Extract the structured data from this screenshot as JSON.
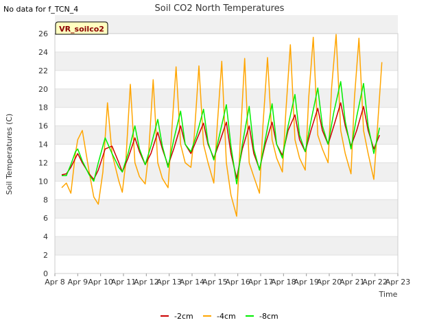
{
  "no_data_note": "No data for f_TCN_4",
  "chart_data": {
    "type": "line",
    "title": "Soil CO2 North Temperatures",
    "xlabel": "Time",
    "ylabel": "Soil Temperatures (C)",
    "badge": "VR_soilco2",
    "ylim": [
      0,
      26
    ],
    "yticks": [
      0,
      2,
      4,
      6,
      8,
      10,
      12,
      14,
      16,
      18,
      20,
      22,
      24,
      26
    ],
    "xlim": [
      8,
      23
    ],
    "xticks": [
      {
        "x": 8,
        "label": "Apr 8"
      },
      {
        "x": 9,
        "label": "Apr 9"
      },
      {
        "x": 10,
        "label": "Apr 10"
      },
      {
        "x": 11,
        "label": "Apr 11"
      },
      {
        "x": 12,
        "label": "Apr 12"
      },
      {
        "x": 13,
        "label": "Apr 13"
      },
      {
        "x": 14,
        "label": "Apr 14"
      },
      {
        "x": 15,
        "label": "Apr 15"
      },
      {
        "x": 16,
        "label": "Apr 16"
      },
      {
        "x": 17,
        "label": "Apr 17"
      },
      {
        "x": 18,
        "label": "Apr 18"
      },
      {
        "x": 19,
        "label": "Apr 19"
      },
      {
        "x": 20,
        "label": "Apr 20"
      },
      {
        "x": 21,
        "label": "Apr 21"
      },
      {
        "x": 22,
        "label": "Apr 22"
      },
      {
        "x": 23,
        "label": "Apr 23"
      }
    ],
    "grid": "horizontal bands",
    "legend_position": "bottom-center",
    "series": [
      {
        "name": "-2cm",
        "color": "#cc0000",
        "x": [
          8.3,
          8.5,
          8.7,
          8.9,
          9.0,
          9.2,
          9.5,
          9.7,
          9.9,
          10.2,
          10.5,
          10.8,
          10.95,
          11.2,
          11.5,
          11.7,
          11.95,
          12.2,
          12.5,
          12.7,
          12.95,
          13.2,
          13.5,
          13.7,
          13.95,
          14.2,
          14.5,
          14.7,
          14.95,
          15.2,
          15.5,
          15.7,
          15.95,
          16.2,
          16.5,
          16.7,
          16.95,
          17.2,
          17.5,
          17.7,
          17.95,
          18.2,
          18.5,
          18.7,
          18.95,
          19.2,
          19.5,
          19.7,
          19.95,
          20.2,
          20.5,
          20.7,
          20.95,
          21.2,
          21.5,
          21.7,
          21.95,
          22.2
        ],
        "y": [
          10.7,
          10.8,
          11.5,
          12.5,
          13.0,
          12.0,
          10.8,
          10.2,
          11.2,
          13.5,
          13.8,
          12.0,
          11.0,
          12.5,
          14.7,
          13.2,
          11.8,
          13.0,
          15.3,
          13.5,
          11.7,
          13.5,
          16.0,
          14.0,
          13.0,
          14.5,
          16.3,
          14.0,
          12.5,
          14.2,
          16.4,
          13.0,
          10.3,
          13.5,
          16.0,
          13.0,
          11.3,
          14.0,
          16.4,
          14.0,
          12.8,
          15.5,
          17.2,
          14.5,
          13.2,
          15.5,
          17.9,
          15.5,
          14.0,
          16.0,
          18.5,
          16.0,
          13.8,
          15.5,
          18.1,
          15.5,
          13.5,
          15.0
        ]
      },
      {
        "name": "-4cm",
        "color": "#ffa500",
        "x": [
          8.3,
          8.5,
          8.7,
          8.9,
          9.0,
          9.2,
          9.5,
          9.7,
          9.9,
          10.1,
          10.3,
          10.5,
          10.8,
          10.95,
          11.1,
          11.3,
          11.5,
          11.7,
          11.95,
          12.1,
          12.3,
          12.5,
          12.7,
          12.95,
          13.1,
          13.3,
          13.5,
          13.7,
          13.95,
          14.1,
          14.3,
          14.5,
          14.7,
          14.95,
          15.1,
          15.3,
          15.5,
          15.7,
          15.95,
          16.1,
          16.3,
          16.5,
          16.7,
          16.95,
          17.1,
          17.3,
          17.5,
          17.7,
          17.95,
          18.1,
          18.3,
          18.5,
          18.7,
          18.95,
          19.1,
          19.3,
          19.5,
          19.7,
          19.95,
          20.1,
          20.3,
          20.5,
          20.7,
          20.95,
          21.1,
          21.3,
          21.5,
          21.7,
          21.95,
          22.1,
          22.3
        ],
        "y": [
          9.3,
          9.8,
          8.7,
          13.0,
          14.5,
          15.5,
          11.0,
          8.3,
          7.5,
          11.0,
          18.5,
          13.0,
          10.0,
          8.8,
          12.0,
          20.5,
          12.0,
          10.5,
          9.7,
          13.0,
          21.0,
          12.0,
          10.3,
          9.3,
          15.0,
          22.4,
          14.0,
          12.0,
          11.5,
          15.0,
          22.5,
          14.0,
          12.0,
          9.8,
          16.0,
          23.0,
          12.0,
          8.5,
          6.2,
          14.0,
          23.3,
          12.0,
          10.5,
          8.7,
          16.0,
          23.4,
          14.5,
          12.5,
          11.0,
          17.5,
          24.8,
          14.5,
          12.5,
          11.2,
          19.0,
          25.6,
          15.0,
          13.5,
          12.0,
          20.0,
          25.9,
          15.5,
          13.0,
          10.8,
          19.0,
          25.5,
          15.5,
          13.0,
          10.2,
          15.5,
          22.9
        ]
      },
      {
        "name": "-8cm",
        "color": "#00ee00",
        "x": [
          8.3,
          8.5,
          8.7,
          8.9,
          9.0,
          9.2,
          9.5,
          9.7,
          9.9,
          10.2,
          10.5,
          10.8,
          10.95,
          11.2,
          11.5,
          11.7,
          11.95,
          12.2,
          12.5,
          12.7,
          12.95,
          13.2,
          13.5,
          13.7,
          13.95,
          14.2,
          14.5,
          14.7,
          14.95,
          15.2,
          15.5,
          15.7,
          15.95,
          16.2,
          16.5,
          16.7,
          16.95,
          17.2,
          17.5,
          17.7,
          17.95,
          18.2,
          18.5,
          18.7,
          18.95,
          19.2,
          19.5,
          19.7,
          19.95,
          20.2,
          20.5,
          20.7,
          20.95,
          21.2,
          21.5,
          21.7,
          21.95,
          22.2
        ],
        "y": [
          10.6,
          10.6,
          11.8,
          13.2,
          13.5,
          12.2,
          10.7,
          10.0,
          12.0,
          14.7,
          13.0,
          11.5,
          11.0,
          13.0,
          16.0,
          13.5,
          11.8,
          13.8,
          16.7,
          13.8,
          11.5,
          14.5,
          17.6,
          14.0,
          13.2,
          15.0,
          17.8,
          14.2,
          12.3,
          15.0,
          18.3,
          13.8,
          9.7,
          14.0,
          18.1,
          13.5,
          11.2,
          14.5,
          18.4,
          14.0,
          12.5,
          16.0,
          19.4,
          15.0,
          13.2,
          16.5,
          20.1,
          16.0,
          14.0,
          17.5,
          20.8,
          16.5,
          13.5,
          17.0,
          20.6,
          16.0,
          13.0,
          15.8
        ]
      }
    ]
  }
}
